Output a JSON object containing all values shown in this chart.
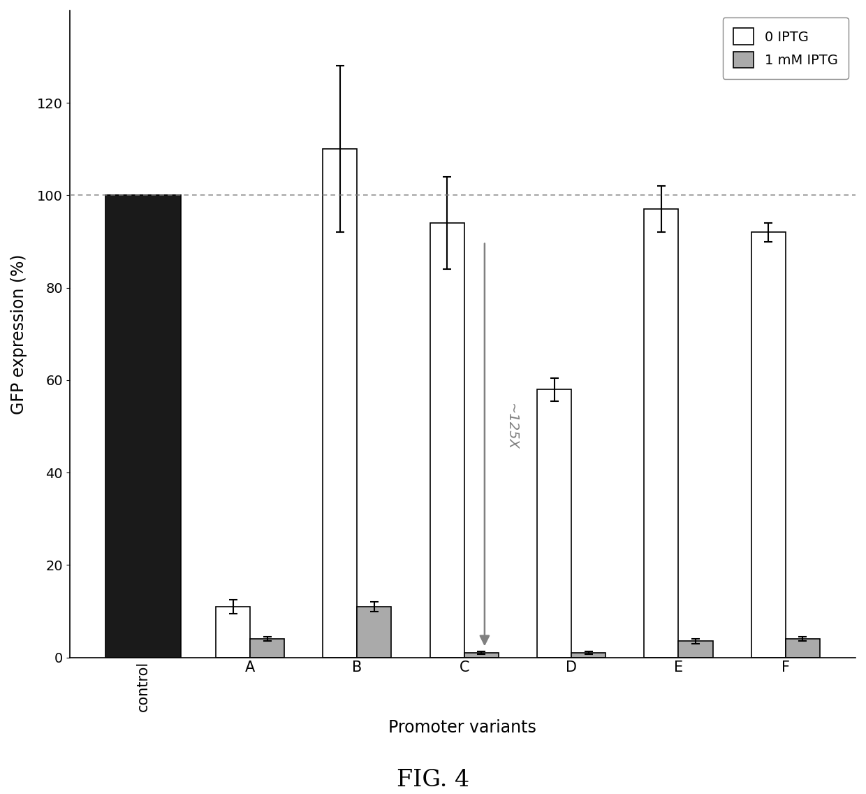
{
  "categories": [
    "control",
    "A",
    "B",
    "C",
    "D",
    "E",
    "F"
  ],
  "no_iptg_values": [
    100,
    11,
    110,
    94,
    58,
    97,
    92
  ],
  "no_iptg_errors": [
    0,
    1.5,
    18,
    10,
    2.5,
    5,
    2
  ],
  "iptg_values": [
    0,
    4,
    11,
    1,
    1,
    3.5,
    4
  ],
  "iptg_errors": [
    0,
    0.5,
    1,
    0.3,
    0.3,
    0.5,
    0.5
  ],
  "control_no_iptg_color": "#1a1a1a",
  "bar_no_iptg_color": "#ffffff",
  "bar_iptg_color": "#aaaaaa",
  "bar_edge_color": "#000000",
  "ylabel": "GFP expression (%)",
  "xlabel": "Promoter variants",
  "fig_title": "FIG. 4",
  "legend_0iptg": "0 IPTG",
  "legend_1mM": "1 mM IPTG",
  "ylim": [
    0,
    140
  ],
  "yticks": [
    0,
    20,
    40,
    60,
    80,
    100,
    120
  ],
  "dashed_line_y": 100,
  "annotation_text": "~125X",
  "background_color": "#ffffff",
  "bar_width": 0.32,
  "figsize": [
    12.4,
    11.36
  ],
  "dpi": 100
}
